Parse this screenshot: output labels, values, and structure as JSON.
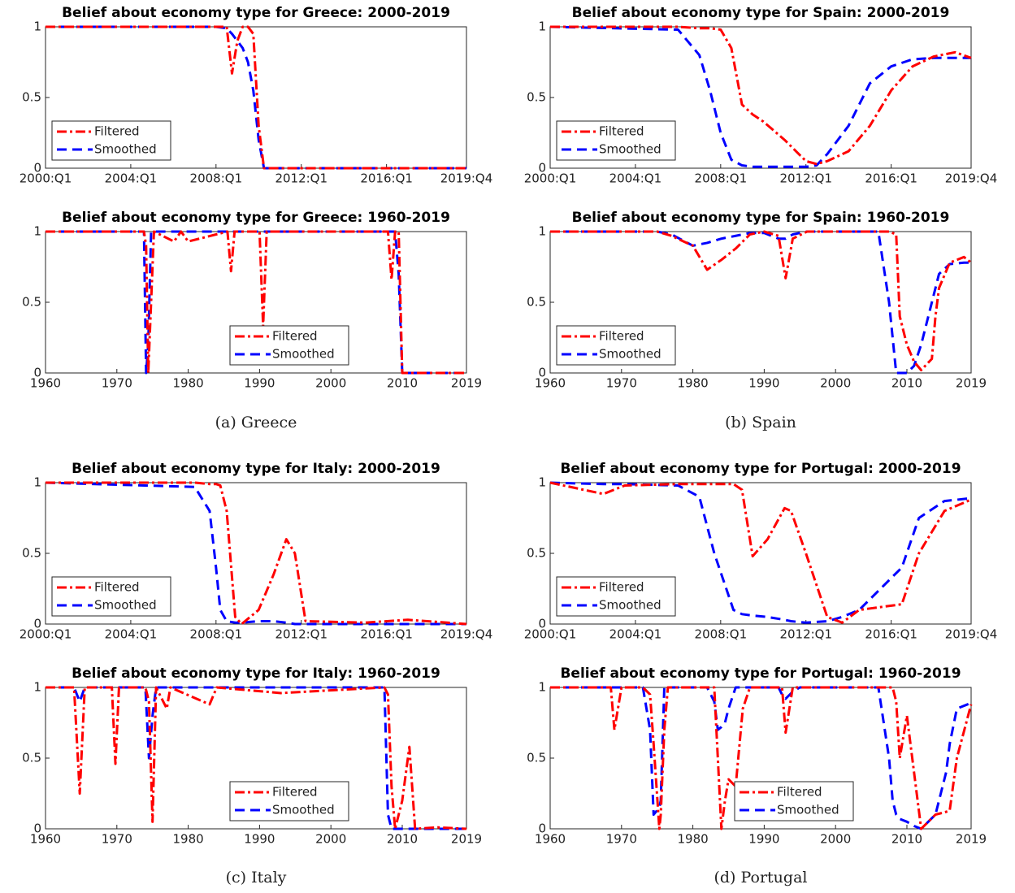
{
  "chart_data": [
    {
      "type": "line",
      "title": "Belief about economy type for Greece: 2000-2019",
      "x": [
        2000,
        2008,
        2008.5,
        2008.75,
        2009.0,
        2009.25,
        2009.5,
        2009.75,
        2010.0,
        2010.25,
        2019.75
      ],
      "series": [
        {
          "name": "Filtered",
          "color": "#ff0000",
          "linestyle": "dashdot",
          "values": [
            1,
            1,
            1,
            0.67,
            0.9,
            1,
            1,
            0.95,
            0.3,
            0,
            0
          ]
        },
        {
          "name": "Smoothed",
          "color": "#0000ff",
          "linestyle": "dashed",
          "values": [
            1,
            1,
            0.99,
            0.95,
            0.9,
            0.85,
            0.75,
            0.55,
            0.2,
            0,
            0
          ]
        }
      ],
      "xlim": [
        2000,
        2019.75
      ],
      "xticks": [
        {
          "value": 2000,
          "label": "2000:Q1"
        },
        {
          "value": 2004,
          "label": "2004:Q1"
        },
        {
          "value": 2008,
          "label": "2008:Q1"
        },
        {
          "value": 2012,
          "label": "2012:Q1"
        },
        {
          "value": 2016,
          "label": "2016:Q1"
        },
        {
          "value": 2019.75,
          "label": "2019:Q4"
        }
      ],
      "ylim": [
        0,
        1
      ],
      "yticks": [
        0,
        0.5,
        1
      ],
      "grid": false,
      "legend": "lower left"
    },
    {
      "type": "line",
      "title": "Belief about economy type for Greece: 1960-2019",
      "x": [
        1960,
        1973.8,
        1974.1,
        1974.4,
        1974.8,
        1975.2,
        1978,
        1979,
        1980,
        1985.5,
        1986,
        1986.5,
        1990,
        1990.5,
        1991,
        2008,
        2008.5,
        2009,
        2009.5,
        2010,
        2019
      ],
      "series": [
        {
          "name": "Filtered",
          "color": "#ff0000",
          "linestyle": "dashdot",
          "values": [
            1,
            1,
            0.9,
            0,
            0.5,
            1,
            0.93,
            1,
            0.93,
            1,
            0.72,
            1,
            1,
            0.33,
            1,
            1,
            0.66,
            1,
            1,
            0,
            0
          ]
        },
        {
          "name": "Smoothed",
          "color": "#0000ff",
          "linestyle": "dashed",
          "values": [
            1,
            1,
            0,
            0.2,
            1,
            1,
            1,
            1,
            1,
            1,
            1,
            1,
            1,
            1,
            1,
            1,
            1,
            1,
            0.7,
            0,
            0
          ]
        }
      ],
      "xlim": [
        1960,
        2019
      ],
      "xticks": [
        1960,
        1970,
        1980,
        1990,
        2000,
        2010,
        2019
      ],
      "ylim": [
        0,
        1
      ],
      "yticks": [
        0,
        0.5,
        1
      ],
      "grid": false,
      "legend": "lower center"
    },
    {
      "type": "line",
      "title": "Belief about economy type for Spain: 2000-2019",
      "x": [
        2000,
        2006,
        2007,
        2007.5,
        2008,
        2008.5,
        2009,
        2009.5,
        2010,
        2011,
        2012,
        2012.5,
        2013,
        2014,
        2015,
        2016,
        2017,
        2018,
        2019,
        2019.75
      ],
      "series": [
        {
          "name": "Filtered",
          "color": "#ff0000",
          "linestyle": "dashdot",
          "values": [
            1,
            1,
            0.99,
            0.99,
            0.98,
            0.85,
            0.45,
            0.38,
            0.33,
            0.2,
            0.05,
            0.03,
            0.05,
            0.12,
            0.3,
            0.55,
            0.72,
            0.79,
            0.82,
            0.78
          ]
        },
        {
          "name": "Smoothed",
          "color": "#0000ff",
          "linestyle": "dashed",
          "values": [
            1,
            0.98,
            0.8,
            0.55,
            0.25,
            0.06,
            0.02,
            0.01,
            0.01,
            0.01,
            0.01,
            0.02,
            0.1,
            0.3,
            0.6,
            0.72,
            0.77,
            0.78,
            0.78,
            0.78
          ]
        }
      ],
      "xlim": [
        2000,
        2019.75
      ],
      "xticks": [
        {
          "value": 2000,
          "label": "2000:Q1"
        },
        {
          "value": 2004,
          "label": "2004:Q1"
        },
        {
          "value": 2008,
          "label": "2008:Q1"
        },
        {
          "value": 2012,
          "label": "2012:Q1"
        },
        {
          "value": 2016,
          "label": "2016:Q1"
        },
        {
          "value": 2019.75,
          "label": "2019:Q4"
        }
      ],
      "ylim": [
        0,
        1
      ],
      "yticks": [
        0,
        0.5,
        1
      ],
      "grid": false,
      "legend": "lower left"
    },
    {
      "type": "line",
      "title": "Belief about economy type for Spain: 1960-2019",
      "x": [
        1960,
        1975,
        1977,
        1980,
        1982,
        1984,
        1986,
        1988,
        1990,
        1992,
        1993,
        1994,
        1996,
        2006,
        2007.5,
        2008.5,
        2009,
        2010,
        2011,
        2012,
        2013.5,
        2014,
        2014.5,
        2016,
        2018,
        2019
      ],
      "series": [
        {
          "name": "Filtered",
          "color": "#ff0000",
          "linestyle": "dashdot",
          "values": [
            1,
            1,
            0.97,
            0.9,
            0.73,
            0.8,
            0.88,
            0.98,
            1,
            0.97,
            0.67,
            0.95,
            1,
            1,
            1,
            0.98,
            0.4,
            0.2,
            0.08,
            0.02,
            0.1,
            0.4,
            0.6,
            0.78,
            0.82,
            0.78
          ]
        },
        {
          "name": "Smoothed",
          "color": "#0000ff",
          "linestyle": "dashed",
          "values": [
            1,
            1,
            0.98,
            0.9,
            0.92,
            0.95,
            0.97,
            0.99,
            0.99,
            0.95,
            0.95,
            0.98,
            1,
            1,
            0.5,
            0,
            0,
            0,
            0.05,
            0.2,
            0.5,
            0.6,
            0.7,
            0.77,
            0.78,
            0.78
          ]
        }
      ],
      "xlim": [
        1960,
        2019
      ],
      "xticks": [
        1960,
        1970,
        1980,
        1990,
        2000,
        2010,
        2019
      ],
      "ylim": [
        0,
        1
      ],
      "yticks": [
        0,
        0.5,
        1
      ],
      "grid": false,
      "legend": "lower left"
    },
    {
      "type": "line",
      "title": "Belief about economy type for Italy: 2000-2019",
      "x": [
        2000,
        2007,
        2007.7,
        2008,
        2008.2,
        2008.5,
        2008.9,
        2009.2,
        2010,
        2010.7,
        2011.3,
        2011.7,
        2012.2,
        2015,
        2017,
        2019.75
      ],
      "series": [
        {
          "name": "Filtered",
          "color": "#ff0000",
          "linestyle": "dashdot",
          "values": [
            1,
            1,
            0.99,
            0.99,
            0.98,
            0.8,
            0.05,
            0,
            0.1,
            0.35,
            0.6,
            0.5,
            0.02,
            0.01,
            0.03,
            0
          ]
        },
        {
          "name": "Smoothed",
          "color": "#0000ff",
          "linestyle": "dashed",
          "values": [
            1,
            0.97,
            0.8,
            0.4,
            0.1,
            0.02,
            0.01,
            0.01,
            0.02,
            0.02,
            0.01,
            0,
            0,
            0,
            0,
            0
          ]
        }
      ],
      "xlim": [
        2000,
        2019.75
      ],
      "xticks": [
        {
          "value": 2000,
          "label": "2000:Q1"
        },
        {
          "value": 2004,
          "label": "2004:Q1"
        },
        {
          "value": 2008,
          "label": "2008:Q1"
        },
        {
          "value": 2012,
          "label": "2012:Q1"
        },
        {
          "value": 2016,
          "label": "2016:Q1"
        },
        {
          "value": 2019.75,
          "label": "2019:Q4"
        }
      ],
      "ylim": [
        0,
        1
      ],
      "yticks": [
        0,
        0.5,
        1
      ],
      "grid": false,
      "legend": "lower left"
    },
    {
      "type": "line",
      "title": "Belief about economy type for Italy: 1960-2019",
      "x": [
        1960,
        1964,
        1964.8,
        1965.5,
        1969.3,
        1969.8,
        1970.3,
        1974,
        1974.5,
        1975,
        1975.5,
        1977,
        1977.5,
        1983,
        1984,
        1993,
        2007.5,
        2008,
        2008.5,
        2009,
        2010,
        2011,
        2011.8,
        2015,
        2019
      ],
      "series": [
        {
          "name": "Filtered",
          "color": "#ff0000",
          "linestyle": "dashdot",
          "values": [
            1,
            1,
            0.25,
            1,
            1,
            0.46,
            1,
            1,
            0.9,
            0.05,
            1,
            0.85,
            1,
            0.88,
            1,
            0.96,
            1,
            0.95,
            0.3,
            0,
            0.2,
            0.58,
            0,
            0.01,
            0
          ]
        },
        {
          "name": "Smoothed",
          "color": "#0000ff",
          "linestyle": "dashed",
          "values": [
            1,
            1,
            0.9,
            1,
            1,
            1,
            1,
            1,
            0.5,
            0.8,
            1,
            1,
            1,
            1,
            1,
            1,
            1,
            0.1,
            0,
            0,
            0,
            0,
            0,
            0,
            0
          ]
        }
      ],
      "xlim": [
        1960,
        2019
      ],
      "xticks": [
        1960,
        1970,
        1980,
        1990,
        2000,
        2010,
        2019
      ],
      "ylim": [
        0,
        1
      ],
      "yticks": [
        0,
        0.5,
        1
      ],
      "grid": false,
      "legend": "lower center"
    },
    {
      "type": "line",
      "title": "Belief about economy type for Portugal: 2000-2019",
      "x": [
        2000,
        2002.5,
        2003.5,
        2006,
        2007,
        2007.7,
        2008.6,
        2009,
        2009.5,
        2010.2,
        2011,
        2011.3,
        2012,
        2013,
        2013.7,
        2014.5,
        2015.5,
        2016.5,
        2017.3,
        2018.5,
        2019.75
      ],
      "series": [
        {
          "name": "Filtered",
          "color": "#ff0000",
          "linestyle": "dashdot",
          "values": [
            1,
            0.92,
            0.98,
            0.99,
            0.99,
            0.99,
            0.99,
            0.95,
            0.48,
            0.6,
            0.82,
            0.8,
            0.5,
            0.05,
            0.01,
            0.1,
            0.12,
            0.14,
            0.5,
            0.8,
            0.88
          ]
        },
        {
          "name": "Smoothed",
          "color": "#0000ff",
          "linestyle": "dashed",
          "values": [
            1,
            0.99,
            0.99,
            0.98,
            0.9,
            0.5,
            0.1,
            0.07,
            0.06,
            0.05,
            0.03,
            0.02,
            0.01,
            0.02,
            0.05,
            0.1,
            0.25,
            0.4,
            0.75,
            0.87,
            0.89
          ]
        }
      ],
      "xlim": [
        2000,
        2019.75
      ],
      "xticks": [
        {
          "value": 2000,
          "label": "2000:Q1"
        },
        {
          "value": 2004,
          "label": "2004:Q1"
        },
        {
          "value": 2008,
          "label": "2008:Q1"
        },
        {
          "value": 2012,
          "label": "2012:Q1"
        },
        {
          "value": 2016,
          "label": "2016:Q1"
        },
        {
          "value": 2019.75,
          "label": "2019:Q4"
        }
      ],
      "ylim": [
        0,
        1
      ],
      "yticks": [
        0,
        0.5,
        1
      ],
      "grid": false,
      "legend": "lower left"
    },
    {
      "type": "line",
      "title": "Belief about economy type for Portugal: 1960-2019",
      "x": [
        1960,
        1968.5,
        1969,
        1970,
        1973,
        1974,
        1974.5,
        1975.3,
        1975.5,
        1976,
        1976.5,
        1982,
        1983,
        1983.5,
        1984,
        1984.5,
        1985,
        1986,
        1987,
        1988,
        1992,
        1992.5,
        1993,
        1994,
        1995,
        2006,
        2007.5,
        2008,
        2008.5,
        2009,
        2010,
        2011,
        2012,
        2014,
        2015.5,
        2016,
        2017,
        2019
      ],
      "series": [
        {
          "name": "Filtered",
          "color": "#ff0000",
          "linestyle": "dashdot",
          "values": [
            1,
            1,
            0.7,
            1,
            1,
            0.95,
            0.6,
            0,
            0.1,
            0.7,
            1,
            1,
            1,
            0.5,
            0,
            0.2,
            0.35,
            0.3,
            0.85,
            1,
            1,
            1,
            0.68,
            1,
            1,
            1,
            1,
            1,
            0.9,
            0.5,
            0.8,
            0.4,
            0,
            0.1,
            0.12,
            0.13,
            0.5,
            0.88
          ]
        },
        {
          "name": "Smoothed",
          "color": "#0000ff",
          "linestyle": "dashed",
          "values": [
            1,
            1,
            1,
            1,
            1,
            0.7,
            0.1,
            0.15,
            0.2,
            1,
            1,
            1,
            0.9,
            0.7,
            0.72,
            0.75,
            0.85,
            1,
            1,
            1,
            1,
            0.95,
            0.92,
            0.97,
            1,
            1,
            0.5,
            0.2,
            0.1,
            0.07,
            0.05,
            0.02,
            0,
            0.1,
            0.4,
            0.6,
            0.85,
            0.89
          ]
        }
      ],
      "xlim": [
        1960,
        2019
      ],
      "xticks": [
        1960,
        1970,
        1980,
        1990,
        2000,
        2010,
        2019
      ],
      "ylim": [
        0,
        1
      ],
      "yticks": [
        0,
        0.5,
        1
      ],
      "grid": false,
      "legend": "lower center"
    }
  ],
  "captions": [
    "(a) Greece",
    "(b) Spain",
    "(c) Italy",
    "(d) Portugal"
  ]
}
